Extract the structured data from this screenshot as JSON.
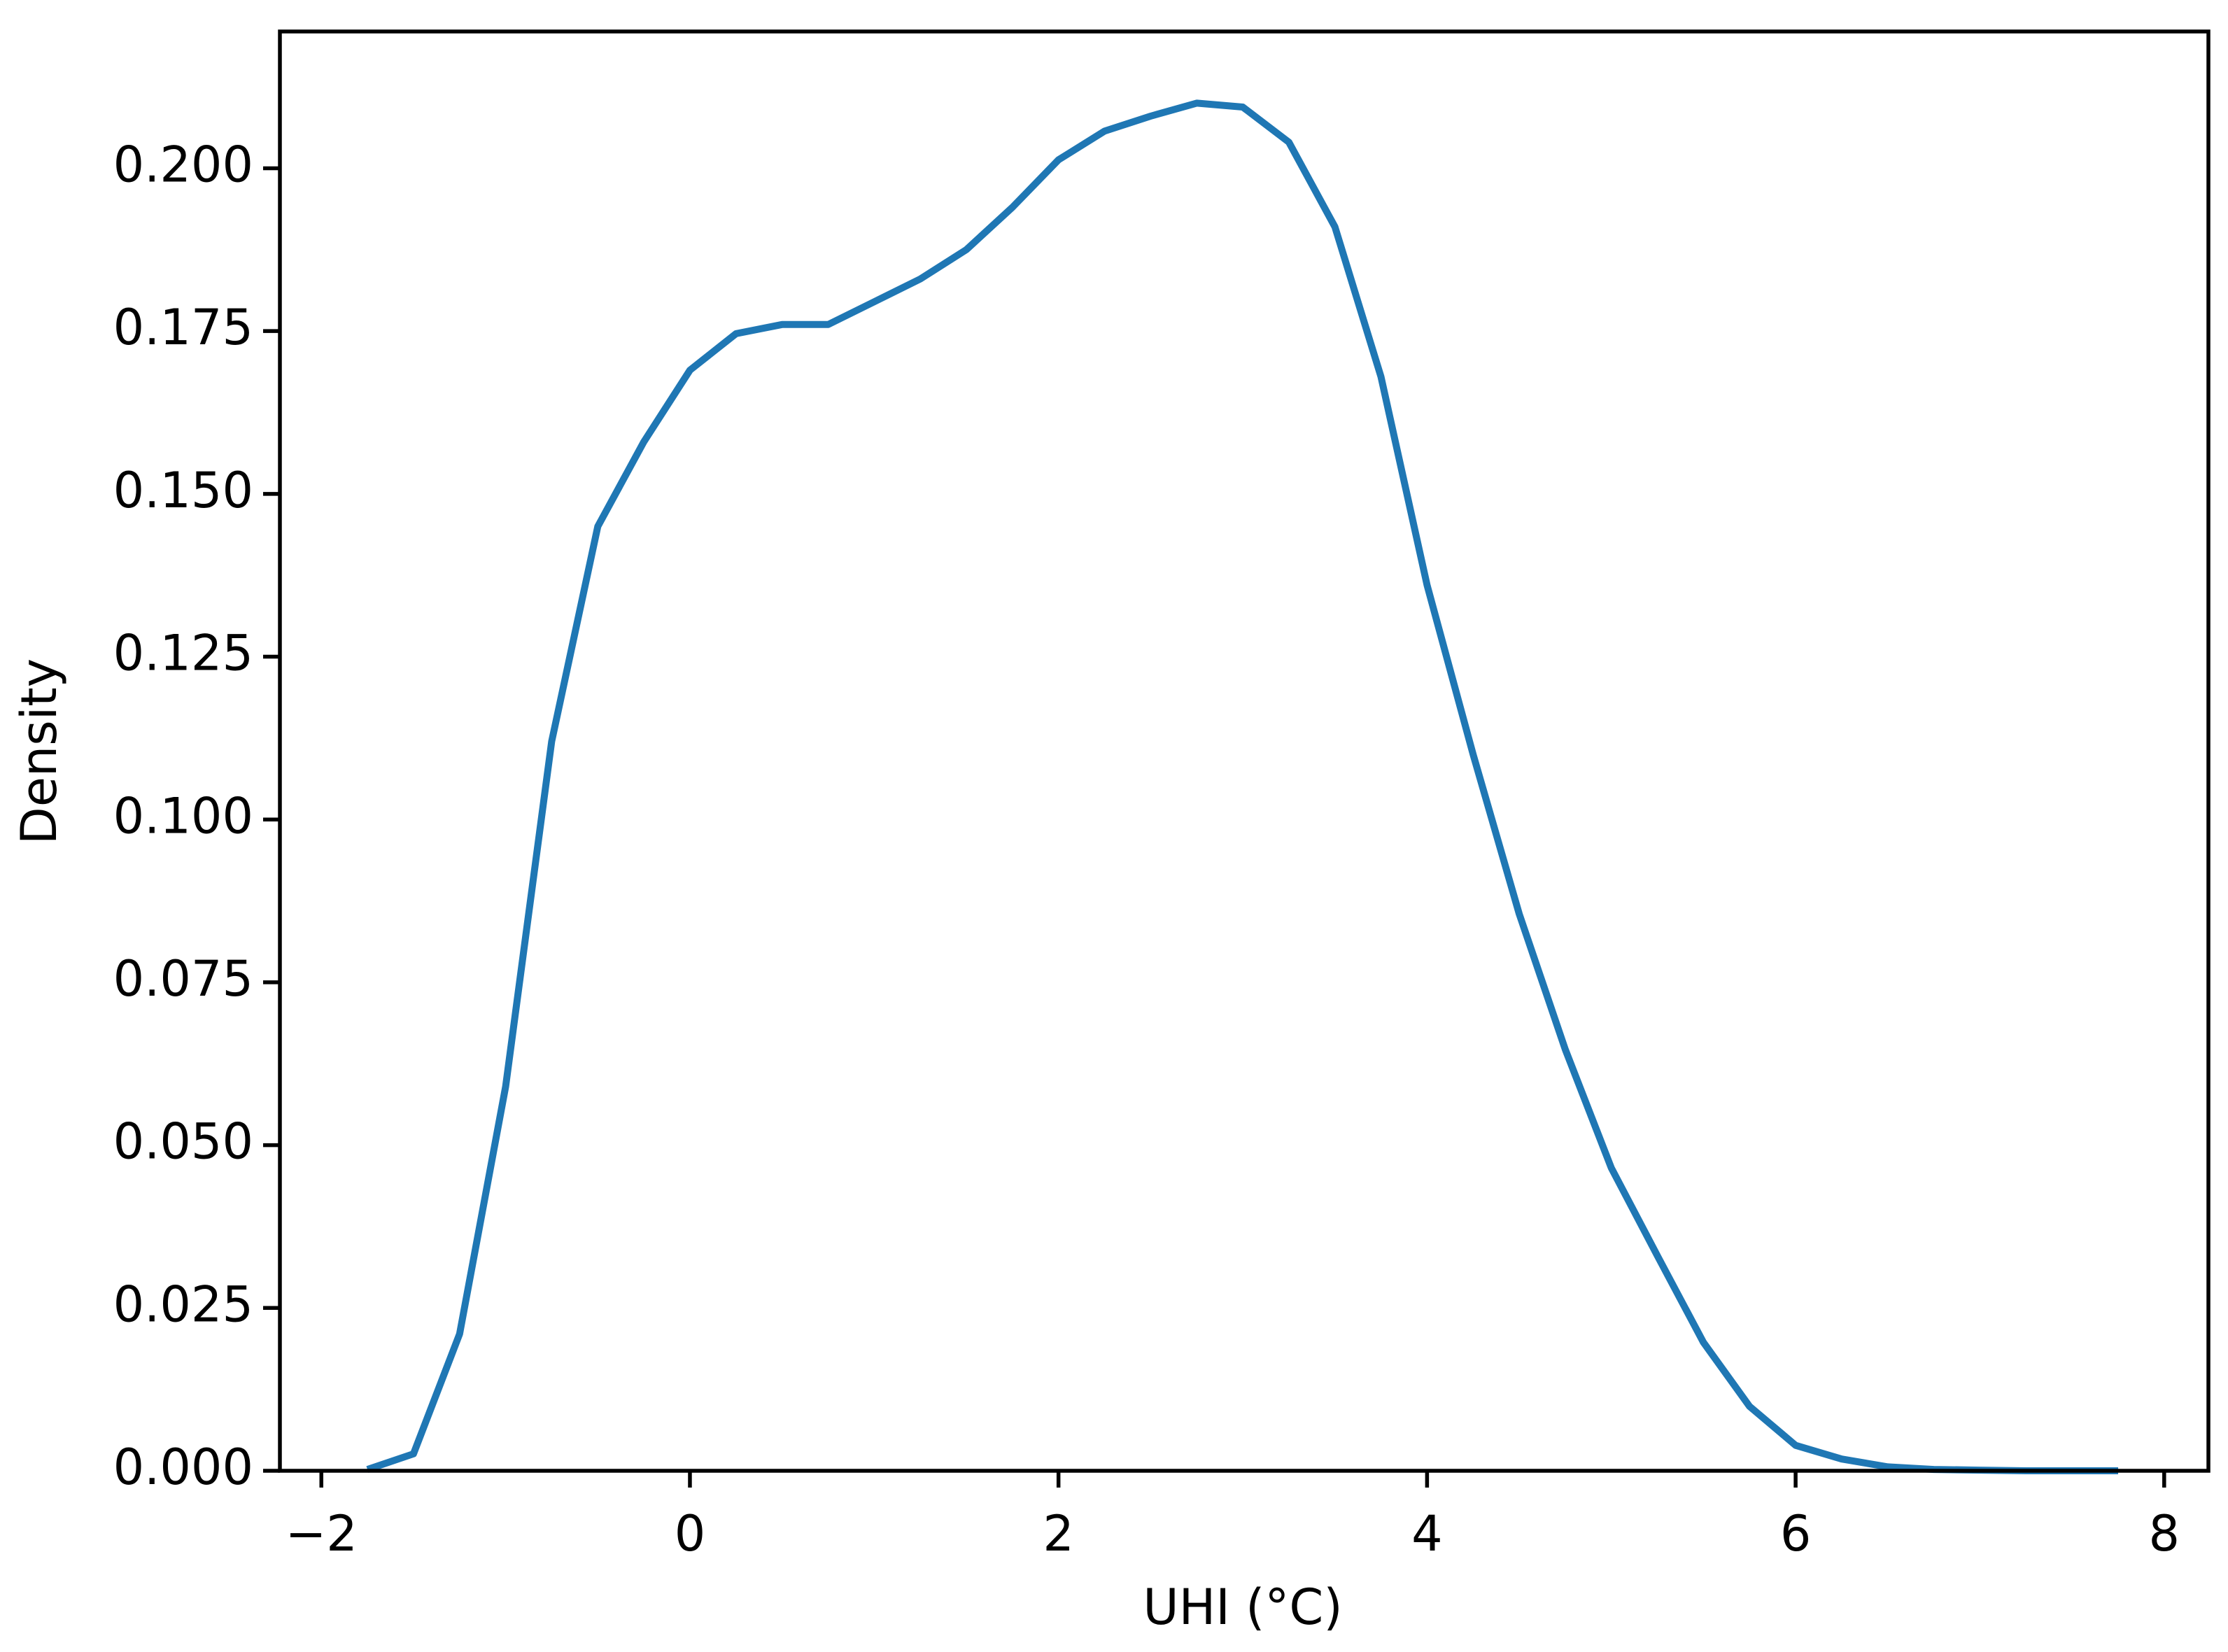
{
  "chart_data": {
    "type": "line",
    "xlabel": "UHI (°C)",
    "ylabel": "Density",
    "series": [
      {
        "color": "#1f77b4",
        "x": [
          -1.75,
          -1.5,
          -1.25,
          -1.0,
          -0.75,
          -0.5,
          -0.25,
          0,
          0.25,
          0.5,
          0.75,
          1.0,
          1.25,
          1.5,
          1.75,
          2.0,
          2.25,
          2.5,
          2.75,
          3.0,
          3.25,
          3.5,
          3.75,
          4.0,
          4.25,
          4.5,
          4.75,
          5.0,
          5.25,
          5.5,
          5.75,
          6.0,
          6.25,
          6.5,
          6.75,
          7.0,
          7.25,
          7.5,
          7.75
        ],
        "values": [
          0.0002,
          0.0026,
          0.021,
          0.059,
          0.112,
          0.145,
          0.158,
          0.169,
          0.1746,
          0.176,
          0.176,
          0.1795,
          0.183,
          0.1875,
          0.194,
          0.2013,
          0.2057,
          0.208,
          0.21,
          0.2094,
          0.204,
          0.191,
          0.168,
          0.136,
          0.11,
          0.0855,
          0.0647,
          0.0465,
          0.033,
          0.0197,
          0.0099,
          0.0039,
          0.0018,
          0.0006,
          0.0002,
          0.0001,
          0,
          0,
          0
        ]
      }
    ],
    "xlim": [
      -2.225,
      8.24
    ],
    "ylim": [
      0,
      0.221
    ],
    "xticks": [
      {
        "value": -2,
        "label": "−2"
      },
      0,
      2,
      4,
      6,
      8
    ],
    "yticks": [
      {
        "value": 0,
        "label": "0.000"
      },
      {
        "value": 0.025,
        "label": "0.025"
      },
      {
        "value": 0.05,
        "label": "0.050"
      },
      {
        "value": 0.075,
        "label": "0.075"
      },
      {
        "value": 0.1,
        "label": "0.100"
      },
      {
        "value": 0.125,
        "label": "0.125"
      },
      {
        "value": 0.15,
        "label": "0.150"
      },
      {
        "value": 0.175,
        "label": "0.175"
      },
      {
        "value": 0.2,
        "label": "0.200"
      }
    ],
    "grid": false
  }
}
